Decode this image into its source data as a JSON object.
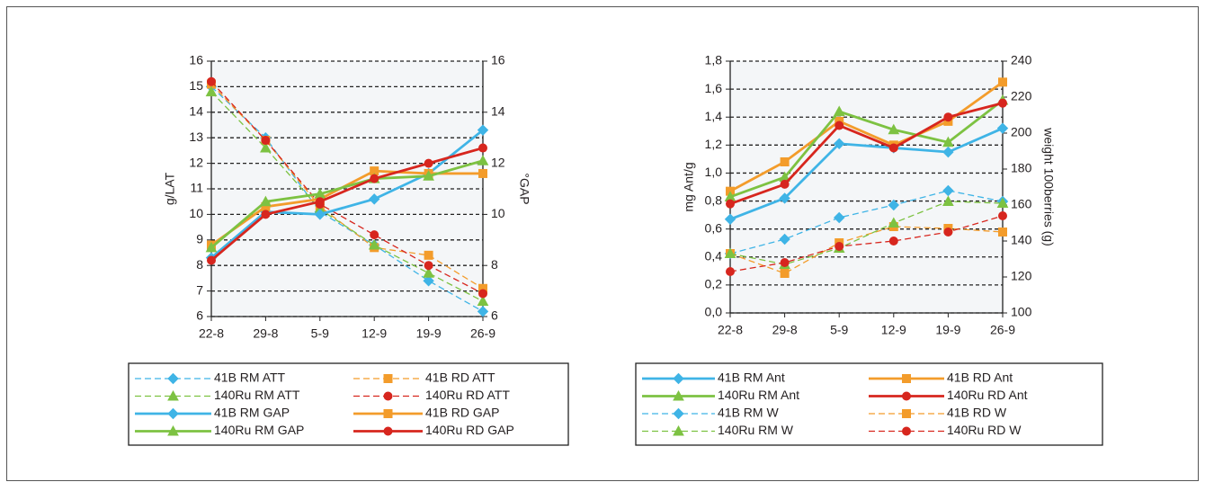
{
  "chart_data": [
    {
      "type": "line",
      "y_label": "g/LAT",
      "y2_label": "°GAP",
      "categories": [
        "22-8",
        "29-8",
        "5-9",
        "12-9",
        "19-9",
        "26-9"
      ],
      "ylim": [
        6,
        16
      ],
      "yticks": [
        6,
        7,
        8,
        9,
        10,
        11,
        12,
        13,
        14,
        15,
        16
      ],
      "y2lim": [
        6,
        16
      ],
      "y2ticks": [
        6,
        8,
        10,
        12,
        14,
        16
      ],
      "grid": true,
      "series": [
        {
          "name": "41B RM ATT",
          "color": "#3fb4e6",
          "line_style": "dashed",
          "marker": "diamond",
          "values": [
            15.0,
            13.0,
            10.1,
            8.8,
            7.4,
            6.2
          ]
        },
        {
          "name": "41B RD ATT",
          "color": "#f39c2b",
          "line_style": "dashed",
          "marker": "square",
          "values": [
            15.1,
            12.9,
            10.3,
            8.7,
            8.4,
            7.1
          ]
        },
        {
          "name": "140Ru RM ATT",
          "color": "#7dc242",
          "line_style": "dashed",
          "marker": "triangle",
          "values": [
            14.8,
            12.6,
            10.2,
            8.8,
            7.7,
            6.6
          ]
        },
        {
          "name": "140Ru RD ATT",
          "color": "#d7261e",
          "line_style": "dashed",
          "marker": "circle",
          "values": [
            15.2,
            12.9,
            10.4,
            9.2,
            8.0,
            6.9
          ]
        },
        {
          "name": "41B RM GAP",
          "color": "#3fb4e6",
          "line_style": "solid",
          "marker": "diamond",
          "axis": "y2",
          "values": [
            8.3,
            10.1,
            10.0,
            10.6,
            11.6,
            13.3
          ]
        },
        {
          "name": "41B RD GAP",
          "color": "#f39c2b",
          "line_style": "solid",
          "marker": "square",
          "axis": "y2",
          "values": [
            8.8,
            10.3,
            10.6,
            11.7,
            11.6,
            11.6
          ]
        },
        {
          "name": "140Ru RM GAP",
          "color": "#7dc242",
          "line_style": "solid",
          "marker": "triangle",
          "axis": "y2",
          "values": [
            8.7,
            10.5,
            10.8,
            11.4,
            11.5,
            12.1
          ]
        },
        {
          "name": "140Ru RD GAP",
          "color": "#d7261e",
          "line_style": "solid",
          "marker": "circle",
          "axis": "y2",
          "values": [
            8.2,
            10.0,
            10.5,
            11.4,
            12.0,
            12.6
          ]
        }
      ]
    },
    {
      "type": "line",
      "y_label": "mg Ant/g",
      "y2_label": "weight 100berries (g)",
      "categories": [
        "22-8",
        "29-8",
        "5-9",
        "12-9",
        "19-9",
        "26-9"
      ],
      "ylim": [
        0,
        1.8
      ],
      "yticks": [
        {
          "value": 0,
          "label": "0,0"
        },
        {
          "value": 0.2,
          "label": "0,2"
        },
        {
          "value": 0.4,
          "label": "0,4"
        },
        {
          "value": 0.6,
          "label": "0,6"
        },
        {
          "value": 0.8,
          "label": "0,8"
        },
        {
          "value": 1.0,
          "label": "1,0"
        },
        {
          "value": 1.2,
          "label": "1,2"
        },
        {
          "value": 1.4,
          "label": "1,4"
        },
        {
          "value": 1.6,
          "label": "1,6"
        },
        {
          "value": 1.8,
          "label": "1,8"
        }
      ],
      "y2lim": [
        100,
        240
      ],
      "y2ticks": [
        100,
        120,
        140,
        160,
        180,
        200,
        220,
        240
      ],
      "grid": true,
      "series": [
        {
          "name": "41B RM Ant",
          "color": "#3fb4e6",
          "line_style": "solid",
          "marker": "diamond",
          "values": [
            0.67,
            0.82,
            1.21,
            1.18,
            1.15,
            1.32
          ]
        },
        {
          "name": "41B RD Ant",
          "color": "#f39c2b",
          "line_style": "solid",
          "marker": "square",
          "values": [
            0.87,
            1.08,
            1.37,
            1.2,
            1.37,
            1.65
          ]
        },
        {
          "name": "140Ru RM Ant",
          "color": "#7dc242",
          "line_style": "solid",
          "marker": "triangle",
          "values": [
            0.83,
            0.97,
            1.44,
            1.31,
            1.22,
            1.52
          ]
        },
        {
          "name": "140Ru RD Ant",
          "color": "#d7261e",
          "line_style": "solid",
          "marker": "circle",
          "values": [
            0.78,
            0.92,
            1.34,
            1.18,
            1.4,
            1.5
          ]
        },
        {
          "name": "41B RM W",
          "color": "#3fb4e6",
          "line_style": "dashed",
          "marker": "diamond",
          "axis": "y2",
          "values": [
            133,
            141,
            153,
            160,
            168,
            162
          ]
        },
        {
          "name": "41B RD W",
          "color": "#f39c2b",
          "line_style": "dashed",
          "marker": "square",
          "axis": "y2",
          "values": [
            133,
            122,
            139,
            148,
            147,
            145
          ]
        },
        {
          "name": "140Ru RM W",
          "color": "#7dc242",
          "line_style": "dashed",
          "marker": "triangle",
          "axis": "y2",
          "values": [
            133,
            127,
            136,
            150,
            162,
            161
          ]
        },
        {
          "name": "140Ru RD W",
          "color": "#d7261e",
          "line_style": "dashed",
          "marker": "circle",
          "axis": "y2",
          "values": [
            123,
            128,
            137,
            140,
            145,
            154
          ]
        }
      ]
    }
  ]
}
